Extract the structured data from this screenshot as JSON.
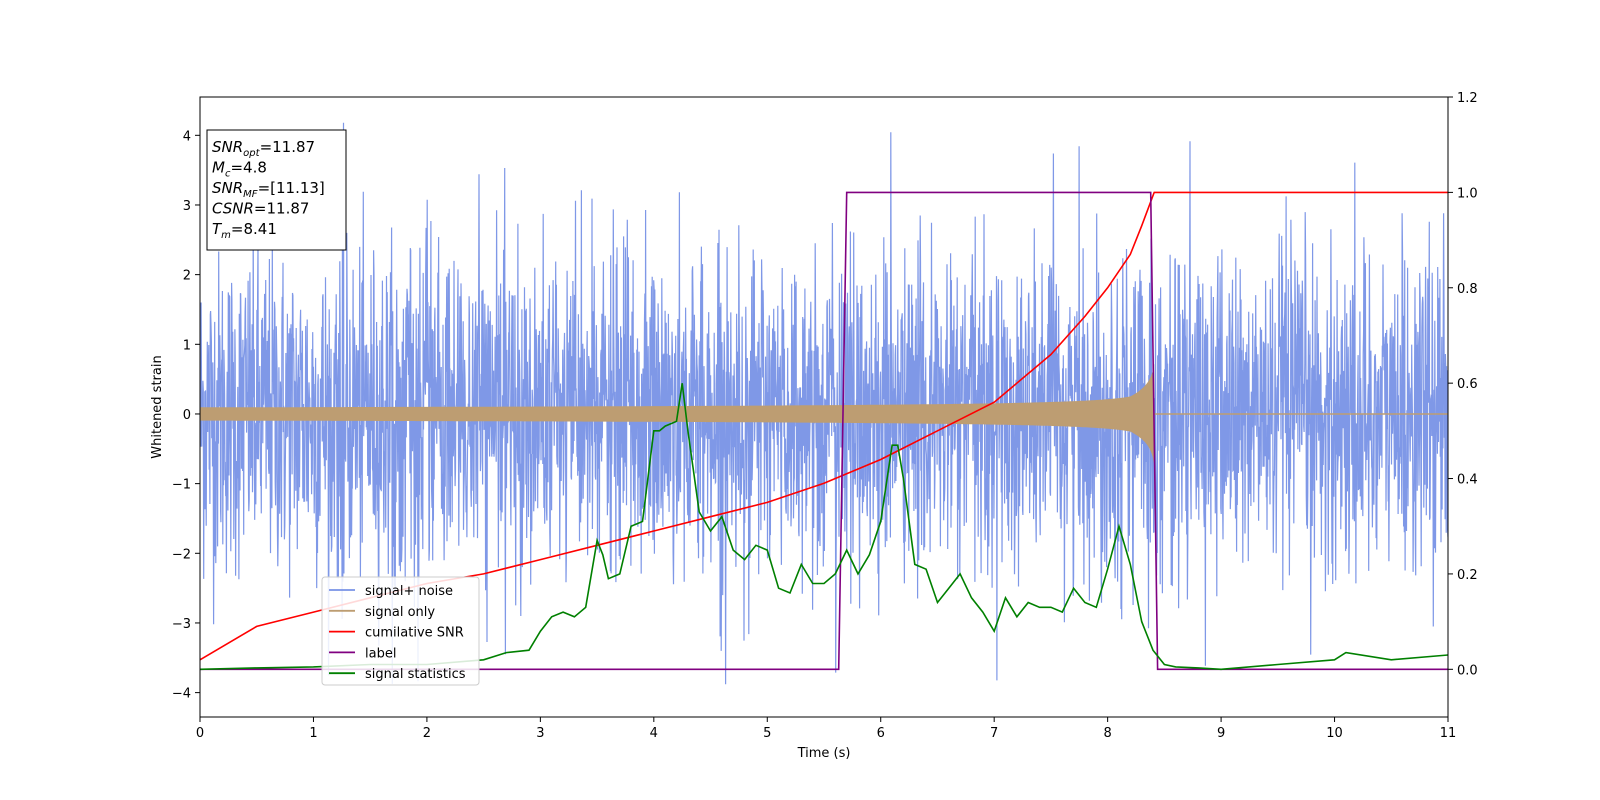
{
  "chart_data": {
    "type": "line",
    "title": "",
    "xlabel": "Time (s)",
    "ylabel": "Whitened strain",
    "xlim": [
      0,
      11
    ],
    "ylim_left": [
      -4.35,
      4.55
    ],
    "ylim_right": [
      -0.1,
      1.2
    ],
    "x_ticks": [
      0,
      1,
      2,
      3,
      4,
      5,
      6,
      7,
      8,
      9,
      10,
      11
    ],
    "y_ticks_left": [
      -4,
      -3,
      -2,
      -1,
      0,
      1,
      2,
      3,
      4
    ],
    "y_ticks_right": [
      "0.0",
      "0.2",
      "0.4",
      "0.6",
      "0.8",
      "1.0",
      "1.2"
    ],
    "legend_position": "lower-left",
    "info_box": {
      "lines": [
        {
          "main": "SNR",
          "sub": "opt",
          "value": "=11.87"
        },
        {
          "main": "M",
          "sub": "c",
          "value": "=4.8"
        },
        {
          "main": "SNR",
          "sub": "MF",
          "value": "=[11.13]"
        },
        {
          "main": "CSNR",
          "sub": "",
          "value": "=11.87"
        },
        {
          "main": "T",
          "sub": "m",
          "value": "=8.41"
        }
      ]
    },
    "series": [
      {
        "name": "signal+ noise",
        "axis": "left",
        "color": "#7892e6",
        "kind": "noise",
        "note_range": [
          -3.9,
          4.2
        ],
        "x_range": [
          0,
          11
        ]
      },
      {
        "name": "signal only",
        "axis": "left",
        "color": "#bd9d72",
        "kind": "chirp",
        "x_range": [
          0,
          8.41
        ]
      },
      {
        "name": "cumilative SNR",
        "axis": "right",
        "color": "#ff0000",
        "x": [
          0,
          0.5,
          1,
          1.5,
          2,
          2.5,
          3,
          3.5,
          4,
          4.5,
          5,
          5.5,
          6,
          6.5,
          7,
          7.5,
          7.8,
          8.0,
          8.2,
          8.3,
          8.41,
          9,
          10,
          11
        ],
        "values": [
          0.02,
          0.09,
          0.12,
          0.15,
          0.18,
          0.2,
          0.23,
          0.26,
          0.29,
          0.32,
          0.35,
          0.39,
          0.44,
          0.5,
          0.56,
          0.66,
          0.74,
          0.8,
          0.87,
          0.93,
          1.0,
          1.0,
          1.0,
          1.0
        ]
      },
      {
        "name": "label",
        "axis": "right",
        "color": "#800080",
        "x": [
          0,
          5.63,
          5.7,
          8.38,
          8.44,
          11
        ],
        "values": [
          0,
          0,
          1,
          1,
          0,
          0
        ]
      },
      {
        "name": "signal statistics",
        "axis": "right",
        "color": "#008000",
        "x": [
          0,
          0.5,
          1,
          1.5,
          2,
          2.5,
          2.7,
          2.9,
          3.0,
          3.1,
          3.2,
          3.3,
          3.4,
          3.5,
          3.55,
          3.6,
          3.7,
          3.8,
          3.9,
          4.0,
          4.05,
          4.1,
          4.2,
          4.25,
          4.3,
          4.4,
          4.5,
          4.6,
          4.7,
          4.8,
          4.9,
          5.0,
          5.1,
          5.2,
          5.3,
          5.4,
          5.5,
          5.6,
          5.7,
          5.8,
          5.9,
          6.0,
          6.1,
          6.15,
          6.2,
          6.3,
          6.4,
          6.5,
          6.6,
          6.7,
          6.8,
          6.9,
          7.0,
          7.1,
          7.2,
          7.3,
          7.4,
          7.5,
          7.6,
          7.7,
          7.8,
          7.9,
          8.0,
          8.1,
          8.2,
          8.3,
          8.4,
          8.5,
          8.6,
          8.8,
          9.0,
          9.5,
          10.0,
          10.1,
          10.5,
          11.0
        ],
        "values": [
          0.0,
          0.003,
          0.005,
          0.01,
          0.01,
          0.02,
          0.035,
          0.04,
          0.08,
          0.11,
          0.12,
          0.11,
          0.13,
          0.27,
          0.24,
          0.19,
          0.2,
          0.3,
          0.31,
          0.5,
          0.5,
          0.51,
          0.52,
          0.6,
          0.5,
          0.33,
          0.29,
          0.32,
          0.25,
          0.23,
          0.26,
          0.25,
          0.17,
          0.16,
          0.22,
          0.18,
          0.18,
          0.2,
          0.25,
          0.2,
          0.24,
          0.31,
          0.47,
          0.47,
          0.4,
          0.22,
          0.21,
          0.14,
          0.17,
          0.2,
          0.15,
          0.12,
          0.08,
          0.15,
          0.11,
          0.14,
          0.13,
          0.13,
          0.12,
          0.17,
          0.14,
          0.13,
          0.21,
          0.3,
          0.22,
          0.1,
          0.04,
          0.01,
          0.005,
          0.003,
          0.0,
          0.01,
          0.02,
          0.035,
          0.02,
          0.03
        ]
      }
    ]
  }
}
